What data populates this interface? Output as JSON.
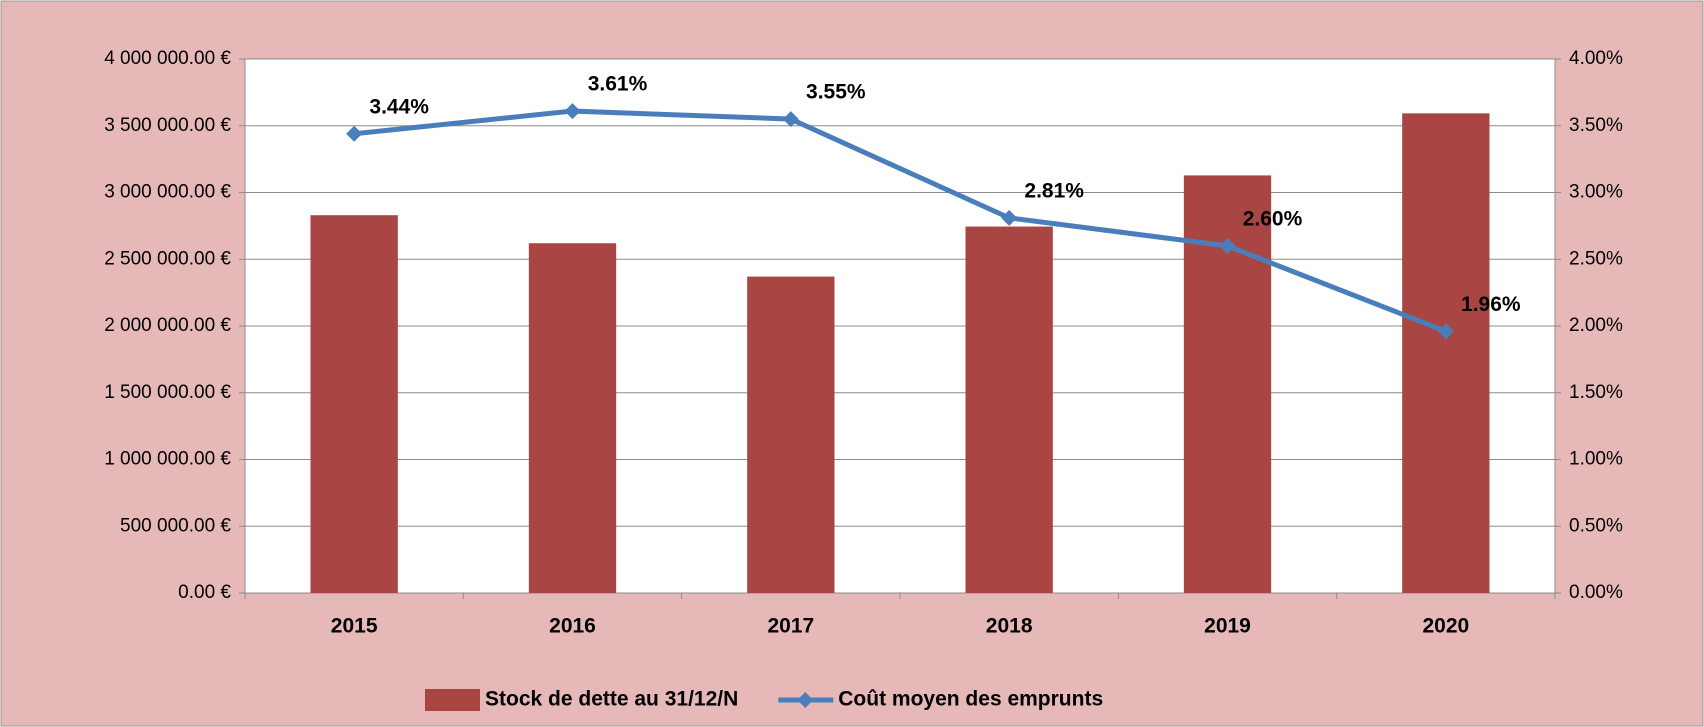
{
  "chart_data": {
    "type": "combo",
    "categories": [
      "2015",
      "2016",
      "2017",
      "2018",
      "2019",
      "2020"
    ],
    "series": [
      {
        "name": "Stock de dette au 31/12/N",
        "type": "bar",
        "color": "#a94643",
        "values": [
          2830000,
          2620000,
          2370000,
          2745000,
          3128000,
          3593000
        ]
      },
      {
        "name": "Coût moyen des emprunts",
        "type": "line",
        "axis": "y2",
        "color": "#4a7ebb",
        "values": [
          3.44,
          3.61,
          3.55,
          2.81,
          2.6,
          1.96
        ],
        "value_labels": [
          "3.44%",
          "3.61%",
          "3.55%",
          "2.81%",
          "2.60%",
          "1.96%"
        ]
      }
    ],
    "ylim": [
      0,
      4000000
    ],
    "yticks": [
      {
        "value": 0,
        "label": "0.00 €"
      },
      {
        "value": 500000,
        "label": "500 000.00 €"
      },
      {
        "value": 1000000,
        "label": "1 000 000.00 €"
      },
      {
        "value": 1500000,
        "label": "1 500 000.00 €"
      },
      {
        "value": 2000000,
        "label": "2 000 000.00 €"
      },
      {
        "value": 2500000,
        "label": "2 500 000.00 €"
      },
      {
        "value": 3000000,
        "label": "3 000 000.00 €"
      },
      {
        "value": 3500000,
        "label": "3 500 000.00 €"
      },
      {
        "value": 4000000,
        "label": "4 000 000.00 €"
      }
    ],
    "y2lim": [
      0,
      4
    ],
    "y2ticks": [
      {
        "value": 0,
        "label": "0.00%"
      },
      {
        "value": 0.5,
        "label": "0.50%"
      },
      {
        "value": 1,
        "label": "1.00%"
      },
      {
        "value": 1.5,
        "label": "1.50%"
      },
      {
        "value": 2,
        "label": "2.00%"
      },
      {
        "value": 2.5,
        "label": "2.50%"
      },
      {
        "value": 3,
        "label": "3.00%"
      },
      {
        "value": 3.5,
        "label": "3.50%"
      },
      {
        "value": 4,
        "label": "4.00%"
      }
    ],
    "grid": true,
    "legend": "bottom"
  }
}
